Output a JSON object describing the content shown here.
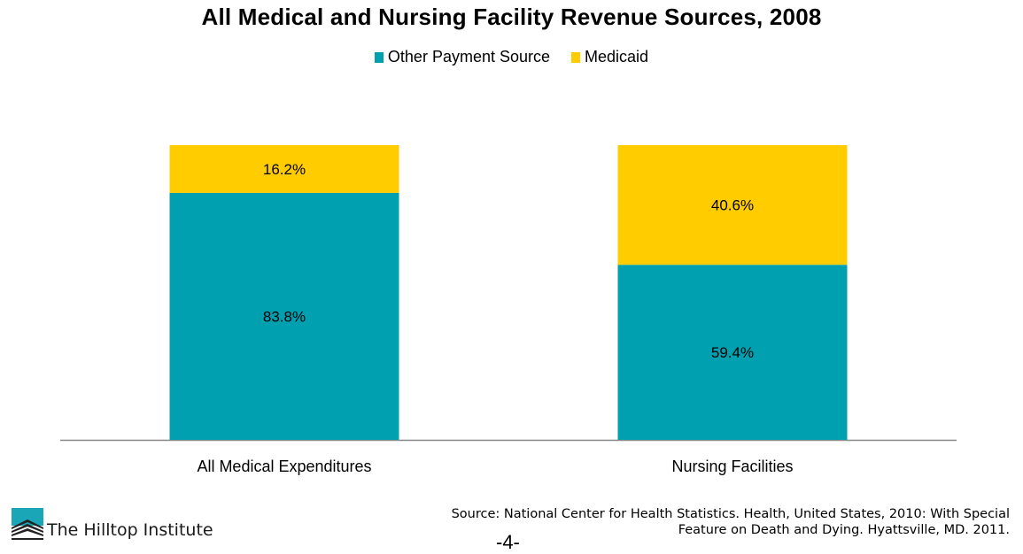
{
  "chart_data": {
    "type": "bar",
    "stacked": true,
    "title": "All Medical and Nursing Facility Revenue Sources, 2008",
    "xlabel": "",
    "ylabel": "",
    "ylim": [
      0,
      100
    ],
    "grid": false,
    "legend_position": "top",
    "categories": [
      "All Medical Expenditures",
      "Nursing Facilities"
    ],
    "series": [
      {
        "name": "Other Payment Source",
        "color": "#00A0B0",
        "values": [
          83.8,
          59.4
        ],
        "labels": [
          "83.8%",
          "59.4%"
        ]
      },
      {
        "name": "Medicaid",
        "color": "#FFCC00",
        "values": [
          16.2,
          40.6
        ],
        "labels": [
          "16.2%",
          "40.6%"
        ]
      }
    ]
  },
  "footer": {
    "logo_text": "The Hilltop Institute",
    "source_line1": "Source: National Center for Health Statistics. Health, United States, 2010: With Special",
    "source_line2": "Feature on Death and Dying. Hyattsville, MD. 2011.",
    "page_number": "-4-"
  }
}
